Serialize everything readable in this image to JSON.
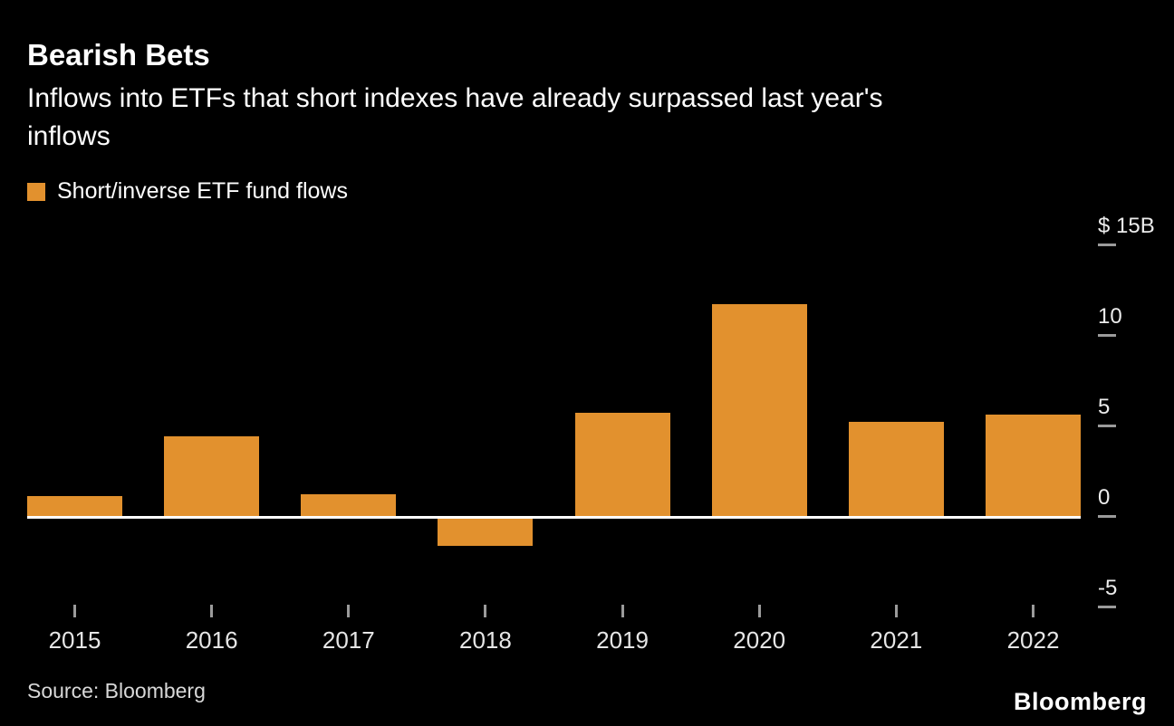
{
  "header": {
    "title": "Bearish Bets",
    "subtitle": "Inflows into ETFs that short indexes have already surpassed last year's inflows",
    "subtitle_line1": "Inflows into ETFs that short indexes have already surpassed last year's",
    "subtitle_line2": "inflows"
  },
  "legend": {
    "label": "Short/inverse ETF fund flows",
    "swatch_color": "#E2912E"
  },
  "chart_data": {
    "type": "bar",
    "title": "Bearish Bets",
    "categories": [
      "2015",
      "2016",
      "2017",
      "2018",
      "2019",
      "2020",
      "2021",
      "2022"
    ],
    "values": [
      1.1,
      4.4,
      1.2,
      -1.5,
      5.7,
      11.7,
      5.2,
      5.6
    ],
    "series_name": "Short/inverse ETF fund flows",
    "unit": "$B",
    "xlabel": "",
    "ylabel": "$B",
    "ylim": [
      -6.5,
      16.5
    ],
    "y_ticks": [
      {
        "label": "$ 15B",
        "value": 15
      },
      {
        "label": "10",
        "value": 10
      },
      {
        "label": "5",
        "value": 5
      },
      {
        "label": "0",
        "value": 0
      },
      {
        "label": "-5",
        "value": -5
      }
    ],
    "grid": false,
    "legend_position": "top-left",
    "bar_color": "#E2912E",
    "background_color": "#000000"
  },
  "footer": {
    "source": "Source: Bloomberg",
    "brand": "Bloomberg"
  }
}
